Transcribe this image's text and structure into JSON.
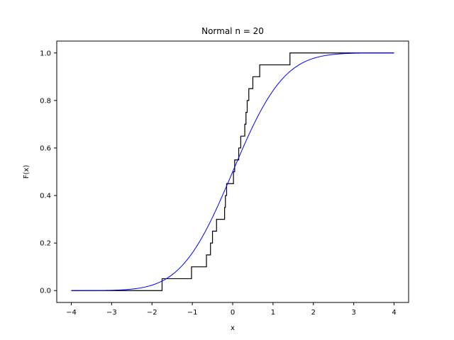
{
  "chart_data": {
    "type": "line",
    "title": "Normal n = 20",
    "xlabel": "x",
    "ylabel": "F(x)",
    "xlim": [
      -4.36,
      4.36
    ],
    "ylim": [
      -0.05,
      1.05
    ],
    "grid": false,
    "x_ticks": [
      -4,
      -3,
      -2,
      -1,
      0,
      1,
      2,
      3,
      4
    ],
    "x_tick_labels": [
      "−4",
      "−3",
      "−2",
      "−1",
      "0",
      "1",
      "2",
      "3",
      "4"
    ],
    "y_ticks": [
      0.0,
      0.2,
      0.4,
      0.6,
      0.8,
      1.0
    ],
    "y_tick_labels": [
      "0.0",
      "0.2",
      "0.4",
      "0.6",
      "0.8",
      "1.0"
    ],
    "series": [
      {
        "kind": "step",
        "color": "#000000",
        "x_range": [
          -4,
          4
        ],
        "jumps": [
          -1.75,
          -1.02,
          -0.65,
          -0.55,
          -0.5,
          -0.4,
          -0.2,
          -0.18,
          -0.15,
          0.02,
          0.05,
          0.15,
          0.2,
          0.3,
          0.33,
          0.36,
          0.4,
          0.5,
          0.67,
          1.42
        ]
      },
      {
        "kind": "normal_cdf",
        "color": "#0000ff",
        "x_range": [
          -4,
          4
        ],
        "mean": 0,
        "sd": 1
      }
    ]
  }
}
